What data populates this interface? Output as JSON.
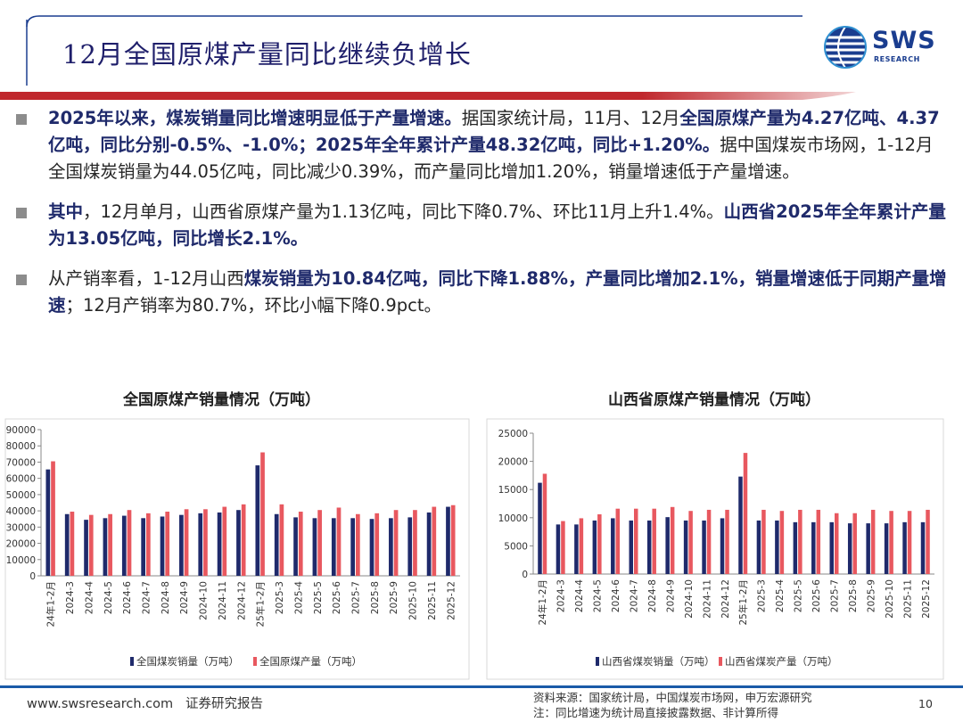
{
  "header": {
    "title": "12月全国原煤产量同比继续负增长",
    "logo_text": "SWS",
    "logo_sub": "RESEARCH",
    "colors": {
      "accent_red": "#c0282d",
      "brand_blue": "#1a3d8f"
    }
  },
  "bullets": [
    {
      "segments": [
        {
          "text": "2025年以来，煤炭销量同比增速明显低于产量增速。",
          "bold": true
        },
        {
          "text": "据国家统计局，11月、12月",
          "bold": false
        },
        {
          "text": "全国原煤产量为4.27亿吨、4.37亿吨，同比分别-0.5%、-1.0%；2025年全年累计产量48.32亿吨，同比+1.20%。",
          "bold": true
        },
        {
          "text": "据中国煤炭市场网，1-12月全国煤炭销量为44.05亿吨，同比减少0.39%，而产量同比增加1.20%，销量增速低于产量增速。",
          "bold": false
        }
      ]
    },
    {
      "segments": [
        {
          "text": "其中",
          "bold": true
        },
        {
          "text": "，12月单月，山西省原煤产量为1.13亿吨，同比下降0.7%、环比11月上升1.4%。",
          "bold": false
        },
        {
          "text": "山西省2025年全年累计产量为13.05亿吨，同比增长2.1%。",
          "bold": true
        }
      ]
    },
    {
      "segments": [
        {
          "text": "从产销率看，1-12月山西",
          "bold": false
        },
        {
          "text": "煤炭销量为10.84亿吨，同比下降1.88%，产量同比增加2.1%，销量增速低于同期产量增速",
          "bold": true
        },
        {
          "text": "；12月产销率为80.7%，环比小幅下降0.9pct。",
          "bold": false
        }
      ]
    }
  ],
  "chart_data": [
    {
      "type": "bar",
      "title": "全国原煤产销量情况（万吨）",
      "categories": [
        "24年1-2月",
        "2024-3",
        "2024-4",
        "2024-5",
        "2024-6",
        "2024-7",
        "2024-8",
        "2024-9",
        "2024-10",
        "2024-11",
        "2024-12",
        "25年1-2月",
        "2025-3",
        "2025-4",
        "2025-5",
        "2025-6",
        "2025-7",
        "2025-8",
        "2025-9",
        "2025-10",
        "2025-11",
        "2025-12"
      ],
      "series": [
        {
          "name": "全国煤炭销量（万吨）",
          "color": "#1f2a6b",
          "values": [
            65500,
            38000,
            34500,
            35500,
            37000,
            35500,
            36500,
            37500,
            38500,
            39000,
            40500,
            68000,
            38000,
            36000,
            35500,
            35500,
            35500,
            35000,
            35500,
            36000,
            39000,
            42500
          ]
        },
        {
          "name": "全国原煤产量（万吨）",
          "color": "#e8585f",
          "values": [
            70500,
            39500,
            37500,
            38000,
            40500,
            38500,
            39500,
            41000,
            41000,
            42500,
            44000,
            76000,
            44000,
            39500,
            40500,
            42000,
            38000,
            38500,
            40500,
            40500,
            42500,
            43500
          ]
        }
      ],
      "yticks": [
        0,
        10000,
        20000,
        30000,
        40000,
        50000,
        60000,
        70000,
        80000,
        90000
      ],
      "ylim": [
        0,
        90000
      ],
      "legend": "bottom"
    },
    {
      "type": "bar",
      "title": "山西省原煤产销量情况（万吨）",
      "categories": [
        "24年1-2月",
        "2024-3",
        "2024-4",
        "2024-5",
        "2024-6",
        "2024-7",
        "2024-8",
        "2024-9",
        "2024-10",
        "2024-11",
        "2024-12",
        "25年1-2月",
        "2025-3",
        "2025-4",
        "2025-5",
        "2025-6",
        "2025-7",
        "2025-8",
        "2025-9",
        "2025-10",
        "2025-11",
        "2025-12"
      ],
      "series": [
        {
          "name": "山西省煤炭销量（万吨）",
          "color": "#1f2a6b",
          "values": [
            16200,
            8800,
            8800,
            9500,
            9900,
            9500,
            9500,
            10100,
            9500,
            9500,
            9900,
            17300,
            9500,
            9500,
            9200,
            9200,
            9200,
            9000,
            9000,
            9000,
            9200,
            9200
          ]
        },
        {
          "name": "山西省煤炭产量（万吨）",
          "color": "#e8585f",
          "values": [
            17800,
            9400,
            9900,
            10600,
            11600,
            11600,
            11600,
            11900,
            11200,
            11400,
            11400,
            21500,
            11400,
            11200,
            11400,
            11400,
            10800,
            10800,
            11400,
            11200,
            11200,
            11400
          ]
        }
      ],
      "yticks": [
        0,
        5000,
        10000,
        15000,
        20000,
        25000
      ],
      "ylim": [
        0,
        25000
      ],
      "legend": "bottom"
    }
  ],
  "footer": {
    "website": "www.swsresearch.com",
    "report_type": "证券研究报告",
    "source_label": "资料来源：",
    "source_text": "国家统计局，中国煤炭市场网，申万宏源研究",
    "note": "注：同比增速为统计局直接披露数据、非计算所得",
    "page": "10"
  }
}
